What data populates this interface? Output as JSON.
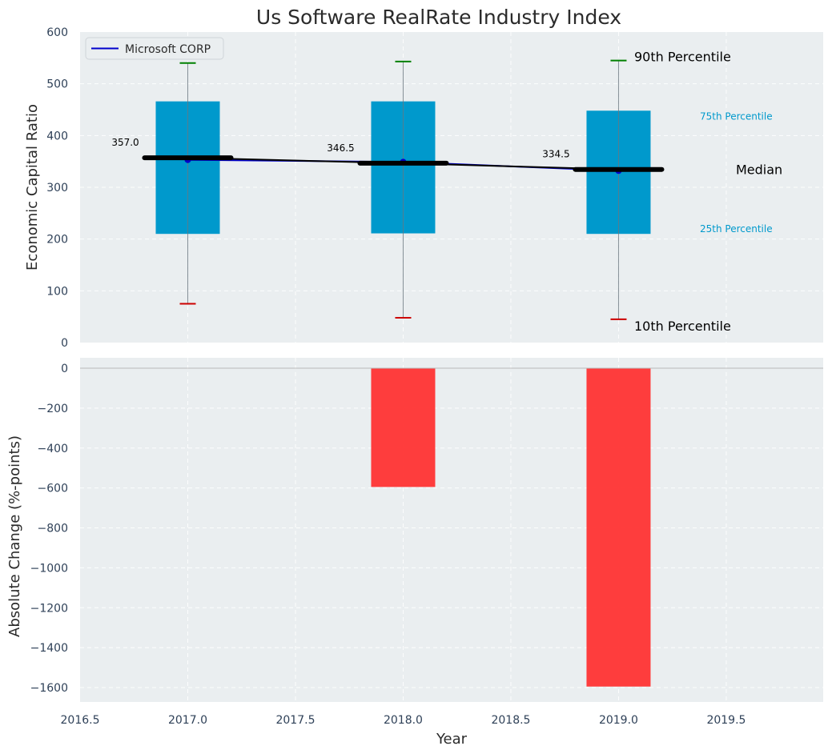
{
  "title": "Us Software RealRate Industry Index",
  "colors": {
    "panel_bg": "#eaeef0",
    "box": "#0099cc",
    "line": "#0000cc",
    "median": "#000000",
    "p90": "#008000",
    "p10": "#cc0000",
    "change_bar": "#ff3333",
    "annot_blue": "#0099cc"
  },
  "chart_data": [
    {
      "type": "box",
      "panel": "top",
      "ylabel": "Economic Capital Ratio",
      "ylim": [
        0,
        600
      ],
      "yticks": [
        "0",
        "100",
        "200",
        "300",
        "400",
        "500",
        "600"
      ],
      "years": [
        2017,
        2018,
        2019
      ],
      "p10": [
        75,
        48,
        45
      ],
      "p25": [
        210,
        211,
        210
      ],
      "median": [
        357.0,
        346.5,
        334.5
      ],
      "p75": [
        466,
        466,
        448
      ],
      "p90": [
        540,
        543,
        545
      ],
      "median_labels": [
        "357.0",
        "346.5",
        "334.5"
      ],
      "series": [
        {
          "name": "Microsoft CORP",
          "values": [
            353,
            349,
            332
          ]
        }
      ],
      "annotations": {
        "p90": "90th Percentile",
        "p75": "75th Percentile",
        "median": "Median",
        "p25": "25th Percentile",
        "p10": "10th Percentile"
      },
      "legend": {
        "label": "Microsoft CORP",
        "position": "top-left"
      },
      "grid": true
    },
    {
      "type": "bar",
      "panel": "bottom",
      "xlabel": "Year",
      "ylabel": "Absolute Change (%-points)",
      "x": [
        2018,
        2019
      ],
      "values": [
        -595,
        -1595
      ],
      "ylim": [
        -1680,
        0
      ],
      "yticks": [
        "0",
        "−200",
        "−400",
        "−600",
        "−800",
        "−1000",
        "−1200",
        "−1400",
        "−1600"
      ],
      "xlim": [
        2016.5,
        2019.95
      ],
      "xticks": [
        "2016.5",
        "2017.0",
        "2017.5",
        "2018.0",
        "2018.5",
        "2019.0",
        "2019.5"
      ],
      "grid": true
    }
  ]
}
